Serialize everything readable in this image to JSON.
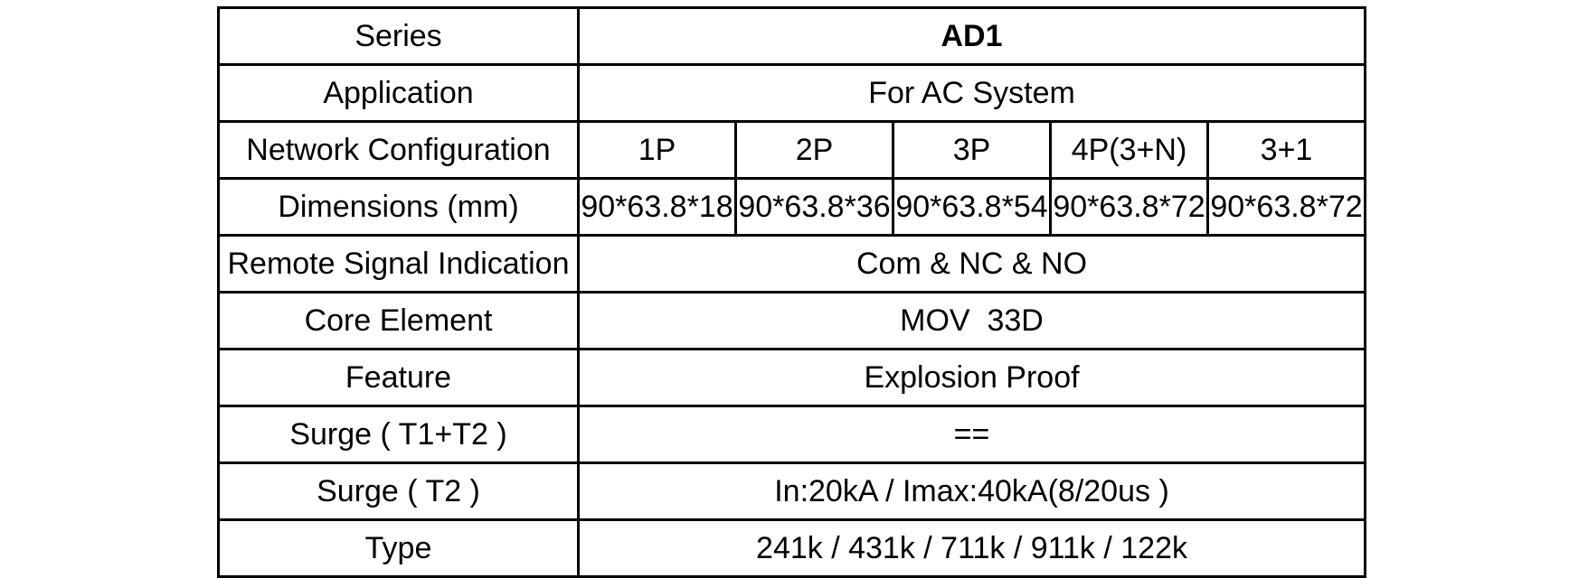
{
  "colors": {
    "background": "#ffffff",
    "border": "#000000",
    "text": "#000000"
  },
  "table": {
    "rows": [
      {
        "label": "Series",
        "value": "AD1"
      },
      {
        "label": "Application",
        "value": "For AC System"
      },
      {
        "label": "Network Configuration",
        "values": [
          "1P",
          "2P",
          "3P",
          "4P(3+N)",
          "3+1"
        ]
      },
      {
        "label": "Dimensions (mm)",
        "values": [
          "90*63.8*18",
          "90*63.8*36",
          "90*63.8*54",
          "90*63.8*72",
          "90*63.8*72"
        ]
      },
      {
        "label": "Remote Signal Indication",
        "value": "Com & NC & NO"
      },
      {
        "label": "Core Element",
        "value": "MOV  33D"
      },
      {
        "label": "Feature",
        "value": "Explosion Proof"
      },
      {
        "label": "Surge ( T1+T2 )",
        "value": "=="
      },
      {
        "label": "Surge ( T2 )",
        "value": "In:20kA / Imax:40kA(8/20us )"
      },
      {
        "label": "Type",
        "value": "241k / 431k / 711k / 911k / 122k"
      }
    ]
  }
}
